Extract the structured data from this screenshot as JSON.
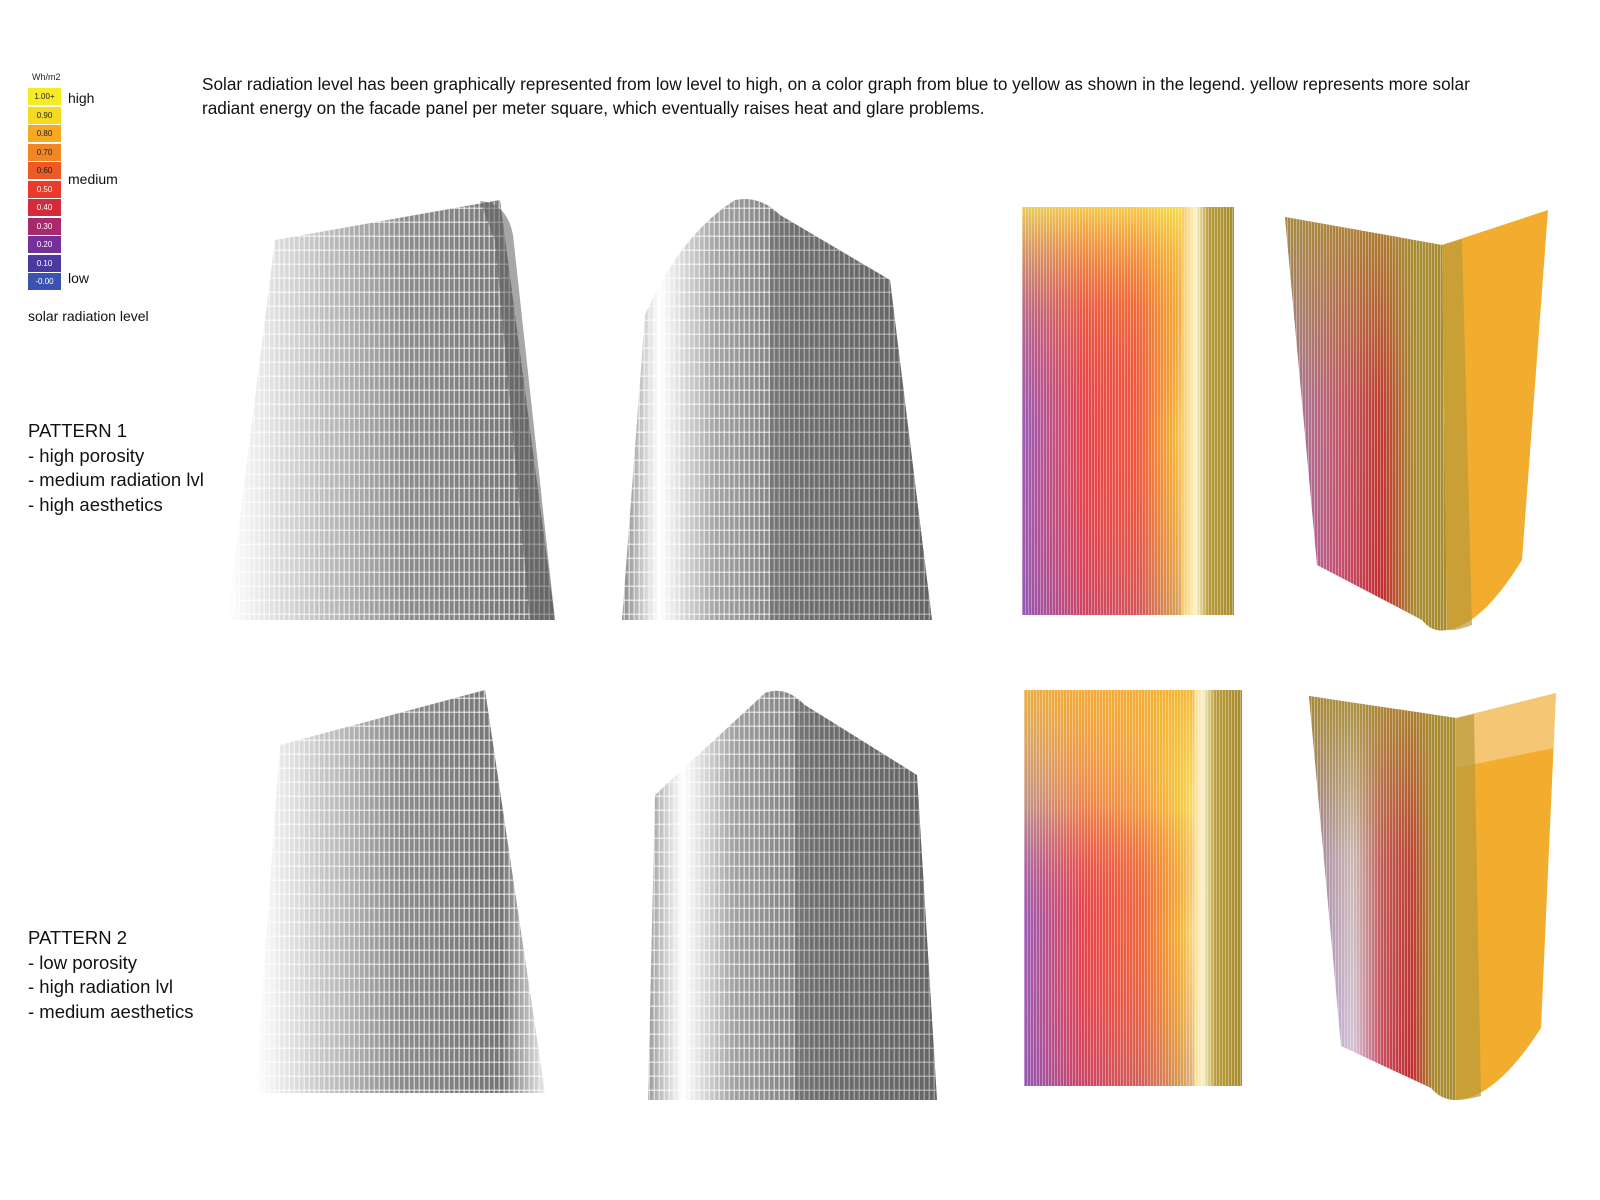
{
  "legend": {
    "unit": "Wh/m2",
    "swatches": [
      {
        "label": "1.00+",
        "color": "#f6ec26",
        "dark": false
      },
      {
        "label": "0.90",
        "color": "#f5da22",
        "dark": false
      },
      {
        "label": "0.80",
        "color": "#f6aa22",
        "dark": false
      },
      {
        "label": "0.70",
        "color": "#f18624",
        "dark": false
      },
      {
        "label": "0.60",
        "color": "#ee5a26",
        "dark": false
      },
      {
        "label": "0.50",
        "color": "#ea3a2c",
        "dark": true
      },
      {
        "label": "0.40",
        "color": "#d42b3a",
        "dark": true
      },
      {
        "label": "0.30",
        "color": "#a62a6c",
        "dark": true
      },
      {
        "label": "0.20",
        "color": "#76309a",
        "dark": true
      },
      {
        "label": "0.10",
        "color": "#4a3aa0",
        "dark": true
      },
      {
        "label": "-0.00",
        "color": "#3a52b0",
        "dark": true
      }
    ],
    "high_label": "high",
    "medium_label": "medium",
    "low_label": "low",
    "caption": "solar radiation level"
  },
  "intro": "Solar radiation level has been graphically represented from low level to high, on a color graph from blue to yellow as shown in the legend. yellow represents more solar radiant energy on the facade panel per meter square, which eventually raises heat and glare problems.",
  "patterns": [
    {
      "title": "PATTERN 1",
      "lines": [
        "- high porosity",
        "- medium radiation lvl",
        "- high aesthetics"
      ]
    },
    {
      "title": "PATTERN 2",
      "lines": [
        "- low porosity",
        "- high radiation lvl",
        "- medium aesthetics"
      ]
    }
  ],
  "colors": {
    "facade_gray": "#7a7a7a",
    "olive": "#a88c32",
    "orange": "#f3ad2e",
    "yellow": "#f7e04a",
    "red": "#e63a3c",
    "purple": "#8a55b0"
  }
}
